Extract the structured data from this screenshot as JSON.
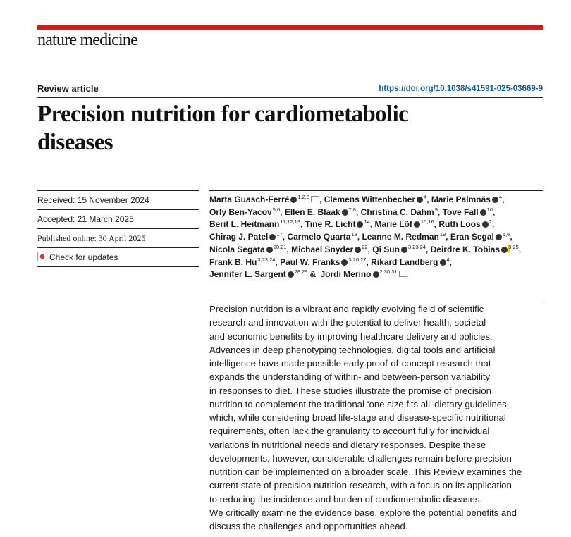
{
  "header": {
    "journal": "nature medicine"
  },
  "article": {
    "type": "Review article",
    "doi": "https://doi.org/10.1038/s41591-025-03669-9",
    "title_lines": [
      "Precision nutrition for cardiometabolic",
      "diseases"
    ]
  },
  "dates": {
    "received": "Received: 15 November 2024",
    "accepted": "Accepted: 21 March 2025",
    "published": "Published online: 30 April 2025",
    "updates": "Check for updates"
  },
  "authors": [
    {
      "name": "Marta Guasch-Ferré",
      "affiliations": "1,2,3",
      "sep": ","
    },
    {
      "name": "Clemens Wittenbecher",
      "affiliations": "4",
      "sep": ","
    },
    {
      "name": "Marie Palmnäs",
      "affiliations": "4",
      "sep": ","
    },
    {
      "name": "Orly Ben-Yacov",
      "affiliations": "5,6",
      "sep": ","
    },
    {
      "name": "Ellen E. Blaak",
      "affiliations": "7,8",
      "sep": ","
    },
    {
      "name": "Christina C. Dahm",
      "affiliations": "9",
      "sep": ","
    },
    {
      "name": "Tove Fall",
      "affiliations": "10",
      "sep": ","
    },
    {
      "name": "Berit L. Heitmann",
      "affiliations": "11,12,13",
      "sep": ","
    },
    {
      "name": "Tine R. Licht",
      "affiliations": "14",
      "sep": ","
    },
    {
      "name": "Marie Löf",
      "affiliations": "15,16",
      "sep": ","
    },
    {
      "name": "Ruth Loos",
      "affiliations": "2",
      "sep": ","
    },
    {
      "name": "Chirag J. Patel",
      "affiliations": "17",
      "sep": ","
    },
    {
      "name": "Carmelo Quarta",
      "affiliations": "18",
      "sep": ","
    },
    {
      "name": "Leanne M. Redman",
      "affiliations": "19",
      "sep": ","
    },
    {
      "name": "Eran Segal",
      "affiliations": "5,6",
      "sep": ","
    },
    {
      "name": "Nicola Segata",
      "affiliations": "20,21",
      "sep": ","
    },
    {
      "name": "Michael Snyder",
      "affiliations": "22",
      "sep": ","
    },
    {
      "name": "Qi Sun",
      "affiliations": "3,23,24",
      "sep": ","
    },
    {
      "name": "Deirdre K. Tobias",
      "affiliations": "3,25",
      "sep": ","
    },
    {
      "name": "Frank B. Hu",
      "affiliations": "3,23,24",
      "sep": ","
    },
    {
      "name": "Paul W. Franks",
      "affiliations": "3,26,27",
      "sep": ","
    },
    {
      "name": "Rikard Landberg",
      "affiliations": "4",
      "sep": ","
    },
    {
      "name": "Jennifer L. Sargent",
      "affiliations": "28,29",
      "sep": "&"
    },
    {
      "name": "Jordi Merino",
      "affiliations": "2,30,31"
    }
  ],
  "abstract": {
    "lines": [
      "Precision nutrition is a vibrant and rapidly evolving field of scientific",
      "research and innovation with the potential to deliver health, societal",
      "and economic benefits by improving healthcare delivery and policies.",
      "Advances in deep phenotyping technologies, digital tools and artificial",
      "intelligence have made possible early proof-of-concept research that",
      "expands the understanding of within- and between-person variability",
      "in responses to diet. These studies illustrate the promise of precision",
      "nutrition to complement the traditional ‘one size fits all’ dietary guidelines,",
      "which, while considering broad life-stage and disease-specific nutritional",
      "requirements, often lack the granularity to account fully for individual",
      "variations in nutritional needs and dietary responses. Despite these",
      "developments, however, considerable challenges remain before precision",
      "nutrition can be implemented on a broader scale. This Review examines the",
      "current state of precision nutrition research, with a focus on its application",
      "to reducing the incidence and burden of cardiometabolic diseases.",
      "We critically examine the evidence base, explore the potential benefits and",
      "discuss the challenges and opportunities ahead."
    ]
  }
}
